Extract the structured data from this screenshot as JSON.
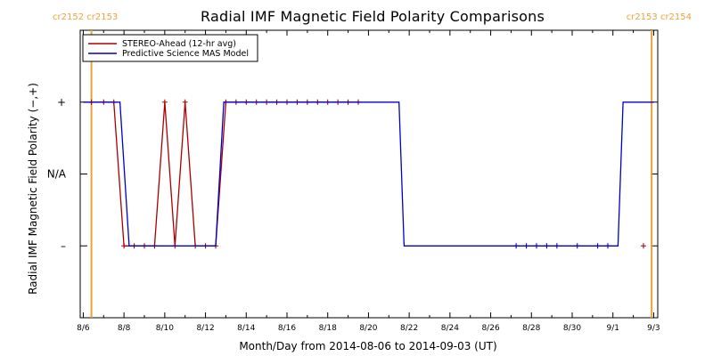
{
  "chart_data": {
    "type": "line",
    "title": "Radial IMF Magnetic Field Polarity Comparisons",
    "xlabel": "Month/Day from 2014-08-06 to 2014-09-03 (UT)",
    "ylabel": "Radial IMF Magnetic Field Polarity (−,+)",
    "x_date_start": "2014-08-06",
    "x_date_end": "2014-09-03",
    "xlim_days": [
      -0.15,
      28.2
    ],
    "ylim": [
      -2,
      2
    ],
    "x_ticks": [
      {
        "day": 0,
        "label": "8/6"
      },
      {
        "day": 2,
        "label": "8/8"
      },
      {
        "day": 4,
        "label": "8/10"
      },
      {
        "day": 6,
        "label": "8/12"
      },
      {
        "day": 8,
        "label": "8/14"
      },
      {
        "day": 10,
        "label": "8/16"
      },
      {
        "day": 12,
        "label": "8/18"
      },
      {
        "day": 14,
        "label": "8/20"
      },
      {
        "day": 16,
        "label": "8/22"
      },
      {
        "day": 18,
        "label": "8/24"
      },
      {
        "day": 20,
        "label": "8/26"
      },
      {
        "day": 22,
        "label": "8/28"
      },
      {
        "day": 24,
        "label": "8/30"
      },
      {
        "day": 26,
        "label": "9/1"
      },
      {
        "day": 28,
        "label": "9/3"
      }
    ],
    "y_ticks": [
      {
        "value": 1,
        "label": "+"
      },
      {
        "value": 0,
        "label": "N/A"
      },
      {
        "value": -1,
        "label": "–"
      }
    ],
    "grid": false,
    "legend_position": "top-left",
    "carrington_markers": [
      {
        "day": 0.4,
        "label": "cr2152 cr2153",
        "color": "#e8a33a",
        "side": "left"
      },
      {
        "day": 27.9,
        "label": "cr2153 cr2154",
        "color": "#e8a33a",
        "side": "right"
      }
    ],
    "series": [
      {
        "name": "STEREO-Ahead (12-hr avg)",
        "color": "#aa0000",
        "markers": true,
        "x": [
          0.4,
          1.0,
          1.5,
          2.0,
          2.5,
          3.0,
          3.5,
          4.0,
          4.5,
          5.0,
          5.5,
          6.0,
          6.5,
          7.0,
          7.5,
          8.0,
          8.5,
          9.0,
          9.5,
          10.0,
          10.5,
          11.0,
          11.5,
          12.0,
          12.5,
          13.0,
          13.5
        ],
        "y": [
          1,
          1,
          1,
          -1,
          -1,
          -1,
          -1,
          1,
          -1,
          1,
          -1,
          -1,
          -1,
          1,
          1,
          1,
          1,
          1,
          1,
          1,
          1,
          1,
          1,
          1,
          1,
          1,
          1
        ]
      },
      {
        "name": "STEREO-Ahead (12-hr avg) late",
        "color": "#aa0000",
        "markers": true,
        "legend": false,
        "x": [
          27.5
        ],
        "y": [
          -1
        ]
      },
      {
        "name": "Predictive Science MAS Model",
        "color": "#0000cc",
        "markers": false,
        "x": [
          0.0,
          1.8,
          2.25,
          2.25,
          6.5,
          6.9,
          15.5,
          15.75,
          15.75,
          26.25,
          26.5,
          28.0
        ],
        "y": [
          1,
          1,
          -1,
          -1,
          -1,
          1,
          1,
          -1,
          -1,
          -1,
          1,
          1
        ]
      },
      {
        "name": "Predictive Science MAS Model markers",
        "color": "#0000cc",
        "markers": true,
        "legend": false,
        "x": [
          21.25,
          21.75,
          22.25,
          22.75,
          23.25,
          24.25,
          25.25,
          25.75
        ],
        "y": [
          -1,
          -1,
          -1,
          -1,
          -1,
          -1,
          -1,
          -1
        ]
      }
    ]
  }
}
